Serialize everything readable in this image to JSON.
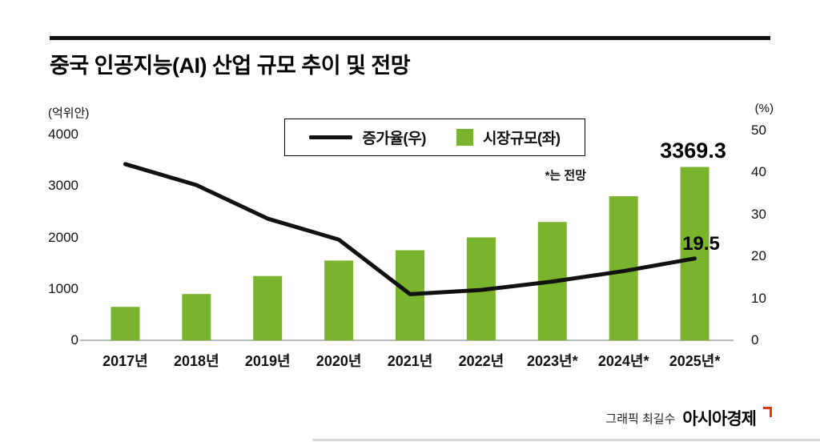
{
  "header": {
    "title": "중국 인공지능(AI) 산업 규모 추이 및 전망"
  },
  "axes": {
    "left_unit": "(억위안)",
    "right_unit": "(%)"
  },
  "legend": {
    "line_label": "증가율(우)",
    "bar_label": "시장규모(좌)",
    "note": "*는 전망"
  },
  "annotations": {
    "bar_value": "3369.3",
    "line_value": "19.5"
  },
  "footer": {
    "credit": "그래픽 최길수",
    "brand": "아시아경제"
  },
  "colors": {
    "bar_green": "#7ab32c",
    "line_black": "#111111",
    "brand_red": "#e8380d"
  },
  "chart_data": {
    "type": "bar",
    "title": "중국 인공지능(AI) 산업 규모 추이 및 전망",
    "note": "*는 전망 (* = forecast)",
    "categories": [
      "2017년",
      "2018년",
      "2019년",
      "2020년",
      "2021년",
      "2022년",
      "2023년*",
      "2024년*",
      "2025년*"
    ],
    "series": [
      {
        "name": "시장규모(좌)",
        "type": "bar",
        "axis": "left",
        "color": "#7ab32c",
        "values": [
          650,
          900,
          1250,
          1550,
          1750,
          2000,
          2300,
          2800,
          3369.3
        ]
      },
      {
        "name": "증가율(우)",
        "type": "line",
        "axis": "right",
        "color": "#111111",
        "values": [
          42,
          37,
          29,
          24,
          11,
          12,
          14,
          16.5,
          19.5
        ]
      }
    ],
    "left_axis": {
      "label": "(억위안)",
      "range": [
        0,
        4000
      ],
      "ticks": [
        0,
        1000,
        2000,
        3000,
        4000
      ]
    },
    "right_axis": {
      "label": "(%)",
      "range": [
        0,
        50
      ],
      "ticks": [
        0,
        10,
        20,
        30,
        40,
        50
      ]
    },
    "legend_position": "top-center",
    "grid": false
  }
}
